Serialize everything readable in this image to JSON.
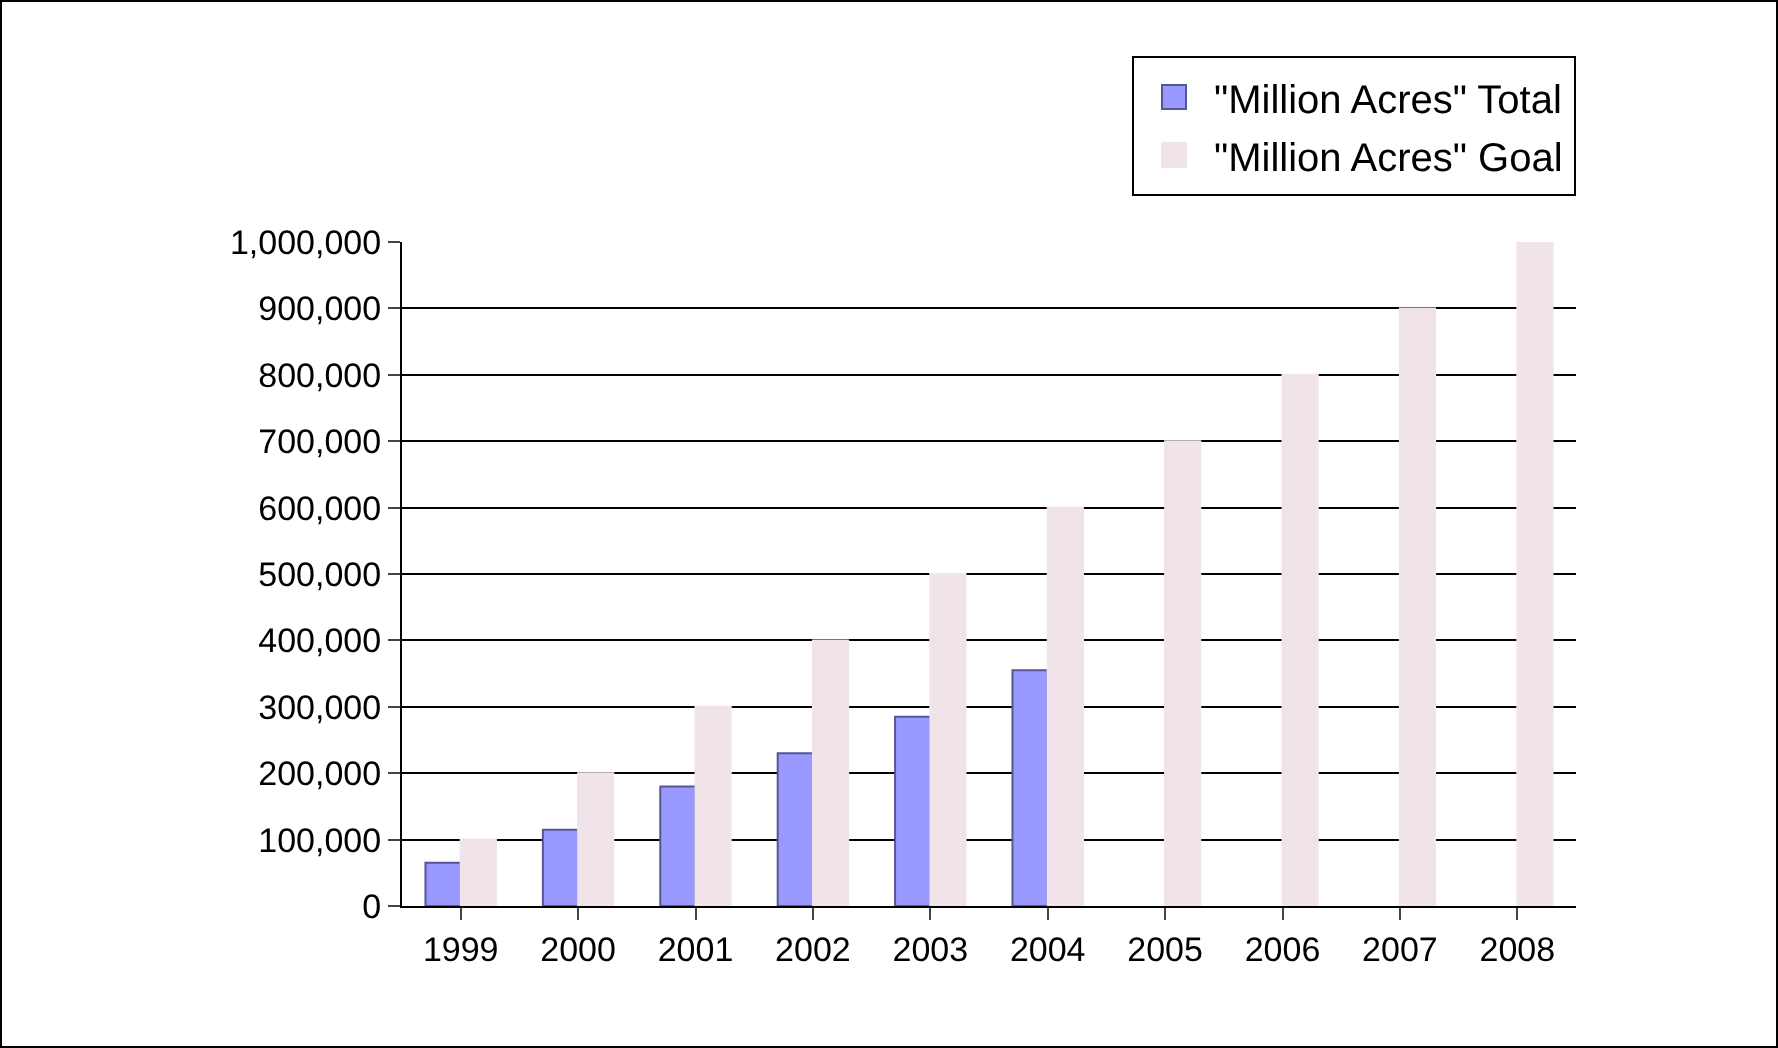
{
  "chart_data": {
    "type": "bar",
    "categories": [
      "1999",
      "2000",
      "2001",
      "2002",
      "2003",
      "2004",
      "2005",
      "2006",
      "2007",
      "2008"
    ],
    "series": [
      {
        "name": "\"Million Acres\" Total",
        "color": "#9999ff",
        "values": [
          65000,
          115000,
          180000,
          230000,
          285000,
          355000,
          null,
          null,
          null,
          null
        ]
      },
      {
        "name": "\"Million Acres\" Goal",
        "color": "#f1e3ea",
        "values": [
          100000,
          200000,
          300000,
          400000,
          500000,
          600000,
          700000,
          800000,
          900000,
          1000000
        ]
      }
    ],
    "ylim": [
      0,
      1000000
    ],
    "yticks": [
      {
        "value": 0,
        "label": "0"
      },
      {
        "value": 100000,
        "label": "100,000"
      },
      {
        "value": 200000,
        "label": "200,000"
      },
      {
        "value": 300000,
        "label": "300,000"
      },
      {
        "value": 400000,
        "label": "400,000"
      },
      {
        "value": 500000,
        "label": "500,000"
      },
      {
        "value": 600000,
        "label": "600,000"
      },
      {
        "value": 700000,
        "label": "700,000"
      },
      {
        "value": 800000,
        "label": "800,000"
      },
      {
        "value": 900000,
        "label": "900,000"
      },
      {
        "value": 1000000,
        "label": "1,000,000"
      }
    ],
    "grid": "y",
    "legend": "top right"
  }
}
